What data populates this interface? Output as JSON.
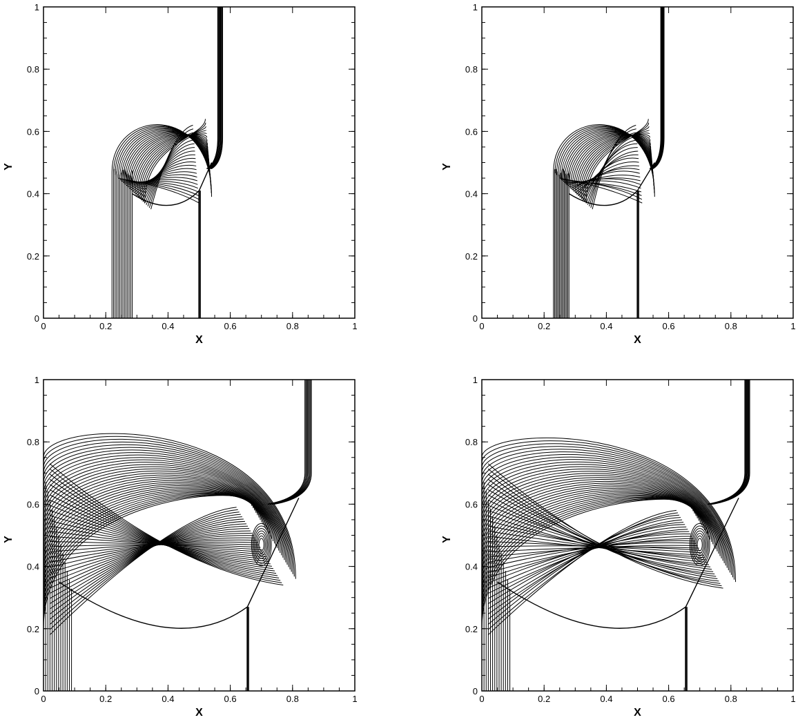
{
  "figure": {
    "line_color": "#000000",
    "background": "#ffffff"
  },
  "chart_data": [
    {
      "id": "top-left",
      "type": "contour",
      "xlabel": "X",
      "ylabel": "Y",
      "xlim": [
        0,
        1
      ],
      "ylim": [
        0,
        1
      ],
      "xticks": [
        0,
        0.2,
        0.4,
        0.6,
        0.8,
        1
      ],
      "yticks": [
        0,
        0.2,
        0.4,
        0.6,
        0.8,
        1
      ],
      "xtick_labels": [
        "0",
        "0.2",
        "0.4",
        "0.6",
        "0.8",
        "1"
      ],
      "ytick_labels": [
        "0",
        "0.2",
        "0.4",
        "0.6",
        "0.8",
        "1"
      ],
      "features": {
        "reflected_shock_x": [
          0.22,
          0.285
        ],
        "contact_line_x": 0.5,
        "incident_shock_x": [
          0.56,
          0.575
        ],
        "bubble_center": [
          0.41,
          0.47
        ],
        "bubble_radius": 0.205,
        "contour_count": 22
      }
    },
    {
      "id": "top-right",
      "type": "contour",
      "xlabel": "X",
      "ylabel": "Y",
      "xlim": [
        0,
        1
      ],
      "ylim": [
        0,
        1
      ],
      "xticks": [
        0,
        0.2,
        0.4,
        0.6,
        0.8,
        1
      ],
      "yticks": [
        0,
        0.2,
        0.4,
        0.6,
        0.8,
        1
      ],
      "xtick_labels": [
        "0",
        "0.2",
        "0.4",
        "0.6",
        "0.8",
        "1"
      ],
      "ytick_labels": [
        "0",
        "0.2",
        "0.4",
        "0.6",
        "0.8",
        "1"
      ],
      "features": {
        "reflected_shock_x": [
          0.23,
          0.28
        ],
        "contact_line_x": 0.5,
        "incident_shock_x": [
          0.575,
          0.585
        ],
        "bubble_center": [
          0.41,
          0.47
        ],
        "bubble_radius": 0.205,
        "contour_count": 22
      }
    },
    {
      "id": "bottom-left",
      "type": "contour",
      "xlabel": "X",
      "ylabel": "Y",
      "xlim": [
        0,
        1
      ],
      "ylim": [
        0,
        1
      ],
      "xticks": [
        0,
        0.2,
        0.4,
        0.6,
        0.8,
        1
      ],
      "yticks": [
        0,
        0.2,
        0.4,
        0.6,
        0.8,
        1
      ],
      "xtick_labels": [
        "0",
        "0.2",
        "0.4",
        "0.6",
        "0.8",
        "1"
      ],
      "ytick_labels": [
        "0",
        "0.2",
        "0.4",
        "0.6",
        "0.8",
        "1"
      ],
      "features": {
        "reflected_shock_x": [
          0.0,
          0.09
        ],
        "contact_line_x": 0.655,
        "incident_shock_x": [
          0.84,
          0.86
        ],
        "bubble_center": [
          0.42,
          0.44
        ],
        "bubble_radius": 0.44,
        "vortex_center": [
          0.7,
          0.47
        ],
        "contour_count": 34
      }
    },
    {
      "id": "bottom-right",
      "type": "contour",
      "xlabel": "X",
      "ylabel": "Y",
      "xlim": [
        0,
        1
      ],
      "ylim": [
        0,
        1
      ],
      "xticks": [
        0,
        0.2,
        0.4,
        0.6,
        0.8,
        1
      ],
      "yticks": [
        0,
        0.2,
        0.4,
        0.6,
        0.8,
        1
      ],
      "xtick_labels": [
        "0",
        "0.2",
        "0.4",
        "0.6",
        "0.8",
        "1"
      ],
      "ytick_labels": [
        "0",
        "0.2",
        "0.4",
        "0.6",
        "0.8",
        "1"
      ],
      "features": {
        "reflected_shock_x": [
          0.0,
          0.09
        ],
        "contact_line_x": 0.655,
        "incident_shock_x": [
          0.845,
          0.86
        ],
        "bubble_center": [
          0.42,
          0.43
        ],
        "bubble_radius": 0.43,
        "vortex_center": [
          0.7,
          0.47
        ],
        "contour_count": 34
      }
    }
  ]
}
